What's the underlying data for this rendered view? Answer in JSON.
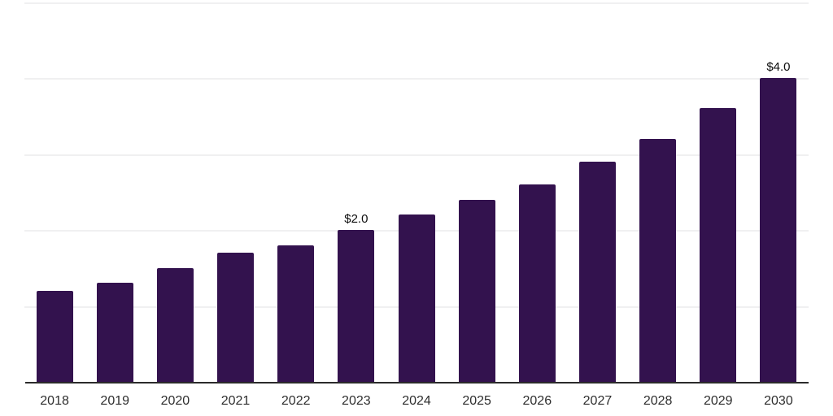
{
  "chart_data": {
    "type": "bar",
    "title": "",
    "xlabel": "",
    "ylabel": "",
    "categories": [
      "2018",
      "2019",
      "2020",
      "2021",
      "2022",
      "2023",
      "2024",
      "2025",
      "2026",
      "2027",
      "2028",
      "2029",
      "2030"
    ],
    "values": [
      1.2,
      1.3,
      1.5,
      1.7,
      1.8,
      2.0,
      2.2,
      2.4,
      2.6,
      2.9,
      3.2,
      3.6,
      4.0
    ],
    "data_labels": {
      "2023": "$2.0",
      "2030": "$4.0"
    },
    "ylim": [
      0,
      5
    ],
    "gridline_values": [
      1,
      2,
      3,
      4,
      5
    ],
    "grid": "horizontal only",
    "legend_position": "none",
    "colors": {
      "bar": "#33124e",
      "gridline": "#f0f0f1",
      "axis_line": "#2b2b2b",
      "tick_label": "#2e2e2e",
      "data_label": "#0d0d0d",
      "background": "#ffffff"
    }
  }
}
